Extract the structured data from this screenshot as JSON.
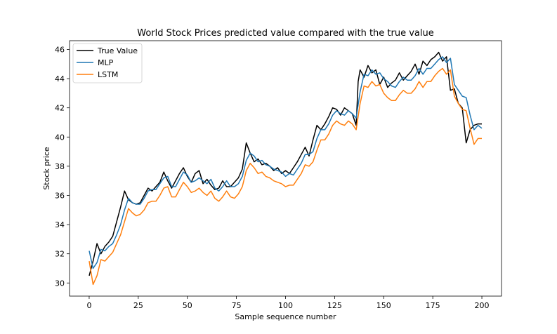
{
  "chart_data": {
    "type": "line",
    "title": "World Stock Prices predicted value compared with the true value",
    "xlabel": "Sample sequence number",
    "ylabel": "Stock price",
    "xlim": [
      -10,
      210
    ],
    "ylim": [
      29.1,
      46.6
    ],
    "xticks": [
      0,
      25,
      50,
      75,
      100,
      125,
      150,
      175,
      200
    ],
    "yticks": [
      30,
      32,
      34,
      36,
      38,
      40,
      42,
      44,
      46
    ],
    "grid": false,
    "legend_position": "top-left",
    "series": [
      {
        "name": "True Value",
        "color": "#000000",
        "x": [
          0,
          2,
          4,
          6,
          8,
          10,
          12,
          14,
          16,
          18,
          20,
          22,
          24,
          26,
          28,
          30,
          32,
          34,
          36,
          38,
          40,
          42,
          44,
          46,
          48,
          50,
          52,
          54,
          56,
          58,
          60,
          62,
          64,
          66,
          68,
          70,
          72,
          74,
          76,
          78,
          80,
          82,
          84,
          86,
          88,
          90,
          92,
          94,
          96,
          98,
          100,
          102,
          104,
          106,
          108,
          110,
          112,
          114,
          116,
          118,
          120,
          122,
          124,
          126,
          128,
          130,
          132,
          134,
          136,
          137,
          138,
          140,
          142,
          144,
          146,
          148,
          150,
          152,
          154,
          156,
          158,
          160,
          162,
          164,
          166,
          168,
          170,
          172,
          174,
          176,
          178,
          180,
          182,
          184,
          186,
          188,
          190,
          192,
          194,
          196,
          198,
          200
        ],
        "values": [
          30.5,
          31.5,
          32.7,
          32.0,
          32.5,
          32.8,
          33.2,
          34.2,
          35.2,
          36.3,
          35.7,
          35.5,
          35.4,
          35.5,
          36.0,
          36.5,
          36.3,
          36.6,
          36.9,
          37.6,
          37.0,
          36.5,
          37.0,
          37.5,
          37.9,
          37.3,
          36.9,
          37.5,
          37.7,
          36.8,
          37.1,
          36.7,
          36.4,
          36.5,
          37.0,
          36.6,
          36.6,
          36.9,
          37.2,
          37.8,
          39.6,
          38.9,
          38.3,
          38.5,
          38.1,
          38.2,
          38.0,
          37.7,
          37.9,
          37.5,
          37.7,
          37.5,
          37.9,
          38.3,
          38.8,
          39.3,
          38.7,
          39.8,
          40.8,
          40.5,
          40.9,
          41.4,
          42.0,
          41.9,
          41.5,
          42.0,
          41.8,
          41.6,
          40.8,
          43.8,
          44.6,
          44.1,
          44.9,
          44.4,
          44.6,
          43.6,
          44.1,
          43.4,
          43.7,
          43.9,
          44.4,
          43.9,
          44.2,
          44.5,
          45.0,
          44.3,
          45.2,
          44.9,
          45.3,
          45.5,
          45.8,
          45.2,
          45.5,
          43.2,
          43.3,
          42.3,
          42.0,
          39.6,
          40.5,
          40.8,
          40.9,
          40.9
        ]
      },
      {
        "name": "MLP",
        "color": "#1f77b4",
        "x": [
          0,
          2,
          4,
          6,
          8,
          10,
          12,
          14,
          16,
          18,
          20,
          22,
          24,
          26,
          28,
          30,
          32,
          34,
          36,
          38,
          40,
          42,
          44,
          46,
          48,
          50,
          52,
          54,
          56,
          58,
          60,
          62,
          64,
          66,
          68,
          70,
          72,
          74,
          76,
          78,
          80,
          82,
          84,
          86,
          88,
          90,
          92,
          94,
          96,
          98,
          100,
          102,
          104,
          106,
          108,
          110,
          112,
          114,
          116,
          118,
          120,
          122,
          124,
          126,
          128,
          130,
          132,
          134,
          136,
          138,
          140,
          142,
          144,
          146,
          148,
          150,
          152,
          154,
          156,
          158,
          160,
          162,
          164,
          166,
          168,
          170,
          172,
          174,
          176,
          178,
          180,
          182,
          184,
          186,
          188,
          190,
          192,
          194,
          196,
          198,
          200
        ],
        "values": [
          32.2,
          31.0,
          31.4,
          32.3,
          32.2,
          32.5,
          32.7,
          33.3,
          34.0,
          35.0,
          35.8,
          35.5,
          35.4,
          35.4,
          35.8,
          36.3,
          36.4,
          36.4,
          36.8,
          37.2,
          37.3,
          36.6,
          36.6,
          37.1,
          37.6,
          37.4,
          36.9,
          37.0,
          37.2,
          37.0,
          36.8,
          37.1,
          36.5,
          36.3,
          36.6,
          37.0,
          36.6,
          36.6,
          36.8,
          37.3,
          38.4,
          38.9,
          38.7,
          38.3,
          38.4,
          38.1,
          38.0,
          37.8,
          37.7,
          37.6,
          37.3,
          37.5,
          37.4,
          37.8,
          38.2,
          38.8,
          38.8,
          39.0,
          39.9,
          40.5,
          40.5,
          40.9,
          41.5,
          41.8,
          41.6,
          41.5,
          41.8,
          41.6,
          41.3,
          43.1,
          44.3,
          44.2,
          44.6,
          44.3,
          44.4,
          44.0,
          43.8,
          43.5,
          43.4,
          43.8,
          44.1,
          43.9,
          43.9,
          44.2,
          44.7,
          44.3,
          44.7,
          44.7,
          45.0,
          45.3,
          45.5,
          45.1,
          45.4,
          43.6,
          43.2,
          42.8,
          42.7,
          41.5,
          40.5,
          40.8,
          40.6
        ]
      },
      {
        "name": "LSTM",
        "color": "#ff7f0e",
        "x": [
          0,
          2,
          4,
          6,
          8,
          10,
          12,
          14,
          16,
          18,
          20,
          22,
          24,
          26,
          28,
          30,
          32,
          34,
          36,
          38,
          40,
          42,
          44,
          46,
          48,
          50,
          52,
          54,
          56,
          58,
          60,
          62,
          64,
          66,
          68,
          70,
          72,
          74,
          76,
          78,
          80,
          82,
          84,
          86,
          88,
          90,
          92,
          94,
          96,
          98,
          100,
          102,
          104,
          106,
          108,
          110,
          112,
          114,
          116,
          118,
          120,
          122,
          124,
          126,
          128,
          130,
          132,
          134,
          136,
          138,
          140,
          142,
          144,
          146,
          148,
          150,
          152,
          154,
          156,
          158,
          160,
          162,
          164,
          166,
          168,
          170,
          172,
          174,
          176,
          178,
          180,
          182,
          184,
          186,
          188,
          190,
          192,
          194,
          196,
          198,
          200
        ],
        "values": [
          31.5,
          29.9,
          30.5,
          31.6,
          31.5,
          31.8,
          32.1,
          32.7,
          33.3,
          34.2,
          35.1,
          34.8,
          34.6,
          34.7,
          35.0,
          35.5,
          35.6,
          35.6,
          36.0,
          36.5,
          36.6,
          35.9,
          35.9,
          36.4,
          36.9,
          36.6,
          36.2,
          36.3,
          36.5,
          36.2,
          36.0,
          36.3,
          35.8,
          35.6,
          35.9,
          36.3,
          35.9,
          35.8,
          36.1,
          36.6,
          37.7,
          38.2,
          37.9,
          37.5,
          37.6,
          37.3,
          37.2,
          37.0,
          36.9,
          36.8,
          36.6,
          36.7,
          36.7,
          37.1,
          37.5,
          38.1,
          38.0,
          38.3,
          39.1,
          39.8,
          39.8,
          40.2,
          40.8,
          41.1,
          40.9,
          40.8,
          41.1,
          40.9,
          40.5,
          42.3,
          43.5,
          43.4,
          43.8,
          43.5,
          43.6,
          43.0,
          42.7,
          42.5,
          42.5,
          42.9,
          43.2,
          43.0,
          43.0,
          43.3,
          43.8,
          43.4,
          43.8,
          43.8,
          44.2,
          44.5,
          44.7,
          44.3,
          44.6,
          42.8,
          42.3,
          41.9,
          41.8,
          40.6,
          39.5,
          39.9,
          39.9
        ]
      }
    ]
  }
}
